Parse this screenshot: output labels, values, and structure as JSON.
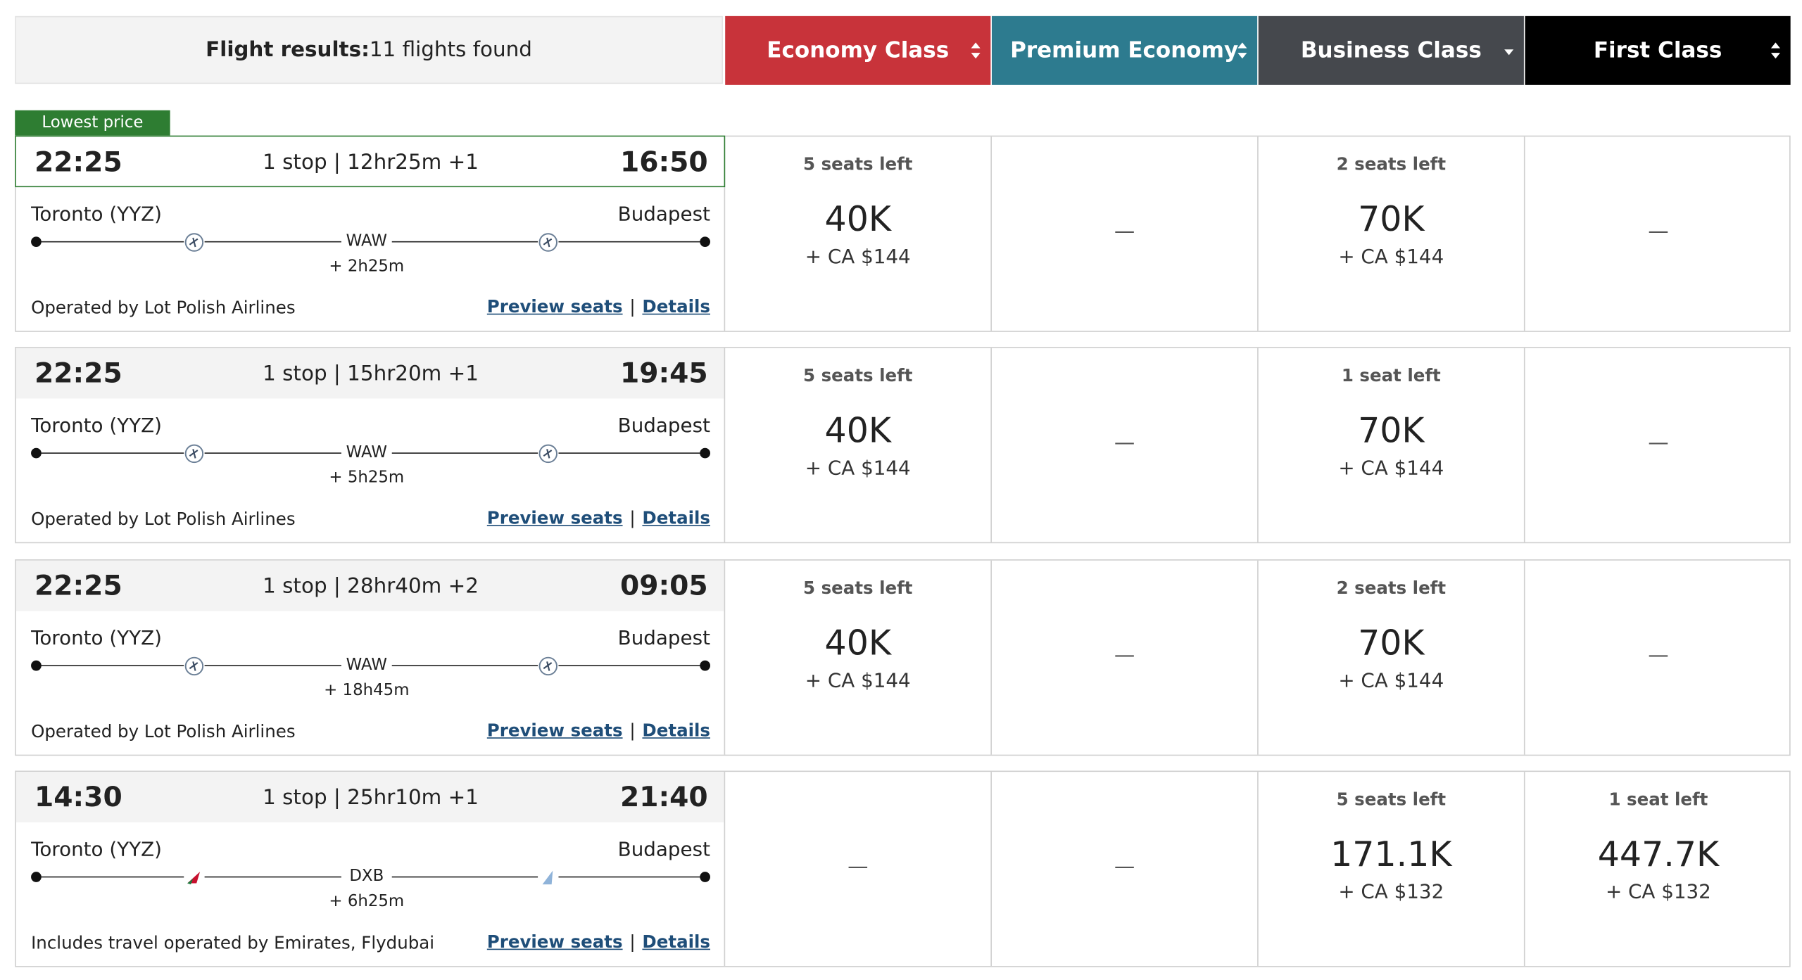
{
  "header": {
    "title": "Flight results:",
    "count": "11 flights found",
    "badge": "Lowest price",
    "columns": [
      "Economy Class",
      "Premium Economy",
      "Business Class",
      "First Class"
    ]
  },
  "flights": [
    {
      "depart": "22:25",
      "summary": "1 stop | 12hr25m +1",
      "arrive": "16:50",
      "origin": "Toronto (YYZ)",
      "destination": "Budapest",
      "via": "WAW",
      "layover": "+ 2h25m",
      "operated": "Operated by Lot Polish Airlines",
      "preview": "Preview seats",
      "details": "Details",
      "fares": [
        {
          "seats": "5 seats left",
          "points": "40K",
          "cash": "+ CA $144"
        },
        "—",
        {
          "seats": "2 seats left",
          "points": "70K",
          "cash": "+ CA $144"
        },
        "—"
      ]
    },
    {
      "depart": "22:25",
      "summary": "1 stop | 15hr20m +1",
      "arrive": "19:45",
      "origin": "Toronto (YYZ)",
      "destination": "Budapest",
      "via": "WAW",
      "layover": "+ 5h25m",
      "operated": "Operated by Lot Polish Airlines",
      "preview": "Preview seats",
      "details": "Details",
      "fares": [
        {
          "seats": "5 seats left",
          "points": "40K",
          "cash": "+ CA $144"
        },
        "—",
        {
          "seats": "1 seat left",
          "points": "70K",
          "cash": "+ CA $144"
        },
        "—"
      ]
    },
    {
      "depart": "22:25",
      "summary": "1 stop | 28hr40m +2",
      "arrive": "09:05",
      "origin": "Toronto (YYZ)",
      "destination": "Budapest",
      "via": "WAW",
      "layover": "+ 18h45m",
      "operated": "Operated by Lot Polish Airlines",
      "preview": "Preview seats",
      "details": "Details",
      "fares": [
        {
          "seats": "5 seats left",
          "points": "40K",
          "cash": "+ CA $144"
        },
        "—",
        {
          "seats": "2 seats left",
          "points": "70K",
          "cash": "+ CA $144"
        },
        "—"
      ]
    },
    {
      "depart": "14:30",
      "summary": "1 stop | 25hr10m +1",
      "arrive": "21:40",
      "origin": "Toronto (YYZ)",
      "destination": "Budapest",
      "via": "DXB",
      "layover": "+ 6h25m",
      "operated": "Includes travel operated by Emirates, Flydubai",
      "preview": "Preview seats",
      "details": "Details",
      "fares": [
        "—",
        "—",
        {
          "seats": "5 seats left",
          "points": "171.1K",
          "cash": "+ CA $132"
        },
        {
          "seats": "1 seat left",
          "points": "447.7K",
          "cash": "+ CA $132"
        }
      ]
    }
  ]
}
